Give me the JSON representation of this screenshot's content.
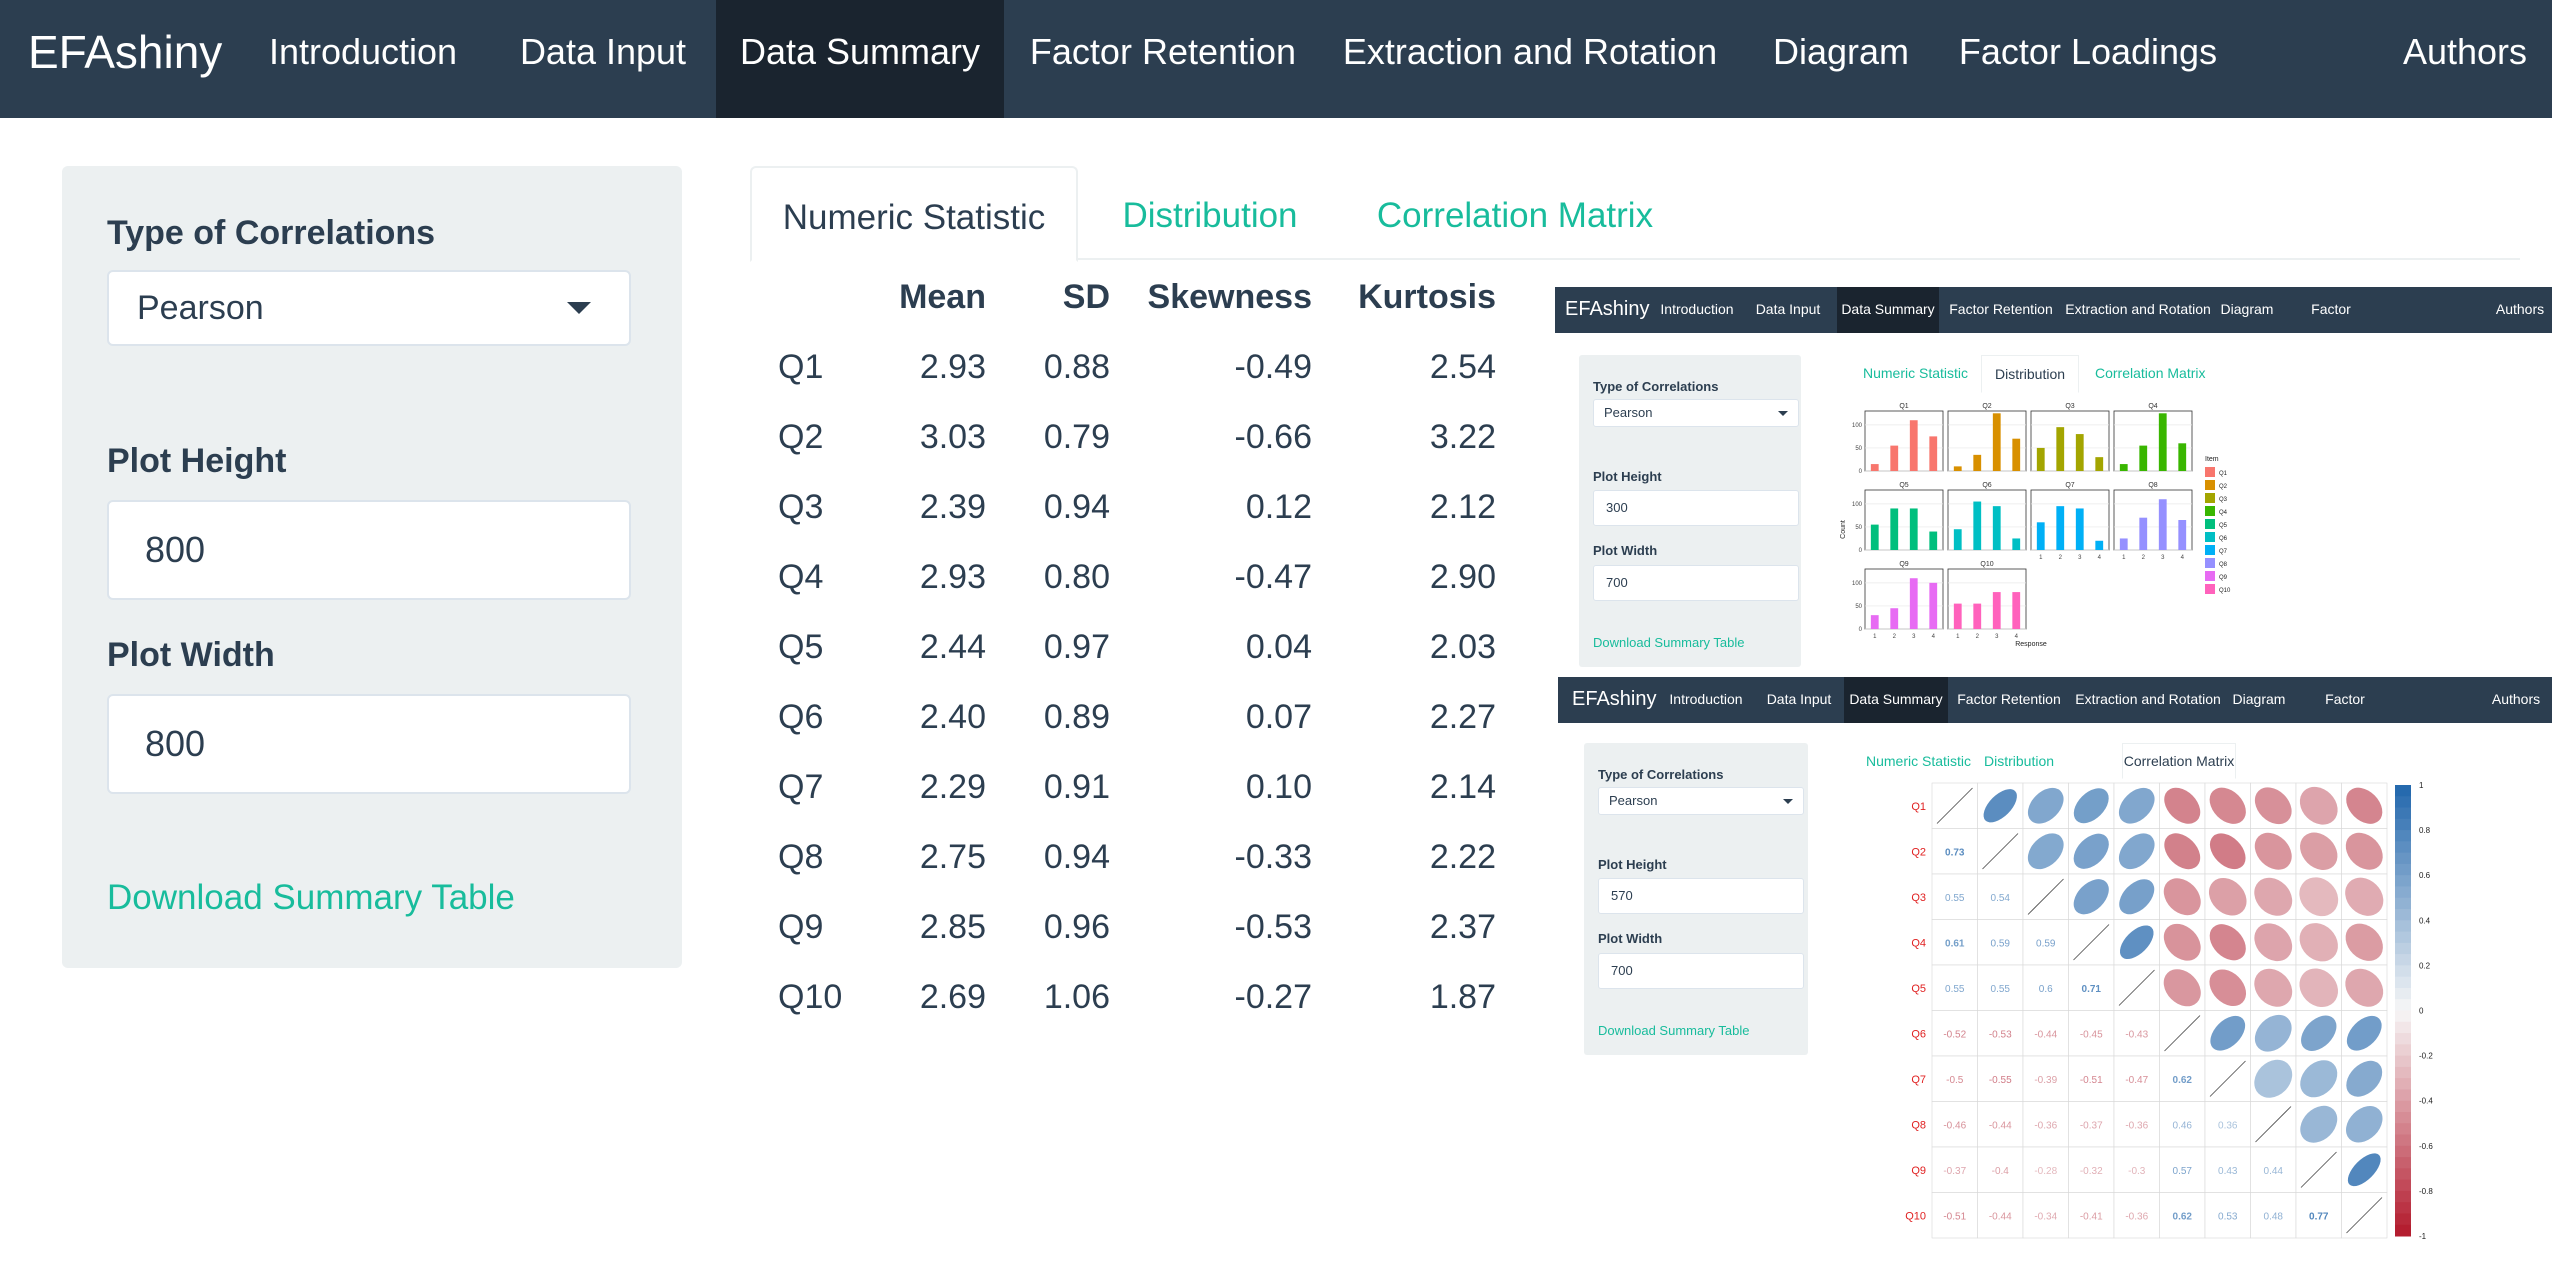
{
  "navbar": {
    "brand": "EFAshiny",
    "items": [
      "Introduction",
      "Data Input",
      "Data Summary",
      "Factor Retention",
      "Extraction and Rotation",
      "Diagram",
      "Factor Loadings"
    ],
    "authors": "Authors",
    "active": "Data Summary"
  },
  "sidebar": {
    "corr_label": "Type of Correlations",
    "corr_value": "Pearson",
    "height_label": "Plot Height",
    "height_value": "800",
    "width_label": "Plot Width",
    "width_value": "800",
    "download": "Download Summary Table"
  },
  "tabs": [
    "Numeric Statistic",
    "Distribution",
    "Correlation Matrix"
  ],
  "stats": {
    "headers": [
      "Mean",
      "SD",
      "Skewness",
      "Kurtosis"
    ],
    "rows": [
      {
        "item": "Q1",
        "mean": "2.93",
        "sd": "0.88",
        "skew": "-0.49",
        "kurt": "2.54"
      },
      {
        "item": "Q2",
        "mean": "3.03",
        "sd": "0.79",
        "skew": "-0.66",
        "kurt": "3.22"
      },
      {
        "item": "Q3",
        "mean": "2.39",
        "sd": "0.94",
        "skew": "0.12",
        "kurt": "2.12"
      },
      {
        "item": "Q4",
        "mean": "2.93",
        "sd": "0.80",
        "skew": "-0.47",
        "kurt": "2.90"
      },
      {
        "item": "Q5",
        "mean": "2.44",
        "sd": "0.97",
        "skew": "0.04",
        "kurt": "2.03"
      },
      {
        "item": "Q6",
        "mean": "2.40",
        "sd": "0.89",
        "skew": "0.07",
        "kurt": "2.27"
      },
      {
        "item": "Q7",
        "mean": "2.29",
        "sd": "0.91",
        "skew": "0.10",
        "kurt": "2.14"
      },
      {
        "item": "Q8",
        "mean": "2.75",
        "sd": "0.94",
        "skew": "-0.33",
        "kurt": "2.22"
      },
      {
        "item": "Q9",
        "mean": "2.85",
        "sd": "0.96",
        "skew": "-0.53",
        "kurt": "2.37"
      },
      {
        "item": "Q10",
        "mean": "2.69",
        "sd": "1.06",
        "skew": "-0.27",
        "kurt": "1.87"
      }
    ]
  },
  "mini_distribution": {
    "sidebar": {
      "corr_label": "Type of Correlations",
      "corr_value": "Pearson",
      "height_label": "Plot Height",
      "height_value": "300",
      "width_label": "Plot Width",
      "width_value": "700",
      "download": "Download Summary Table"
    },
    "active_tab": "Distribution"
  },
  "mini_correlation": {
    "sidebar": {
      "corr_label": "Type of Correlations",
      "corr_value": "Pearson",
      "height_label": "Plot Height",
      "height_value": "570",
      "width_label": "Plot Width",
      "width_value": "700",
      "download": "Download Summary Table"
    },
    "active_tab": "Correlation Matrix"
  },
  "colors": {
    "navbar": "#2c3e50",
    "navbar_active": "#1a242f",
    "accent": "#18bc9c",
    "sidebar": "#ecf0f1"
  },
  "chart_data": [
    {
      "type": "bar",
      "facets": [
        "Q1",
        "Q2",
        "Q3",
        "Q4",
        "Q5",
        "Q6",
        "Q7",
        "Q8",
        "Q9",
        "Q10"
      ],
      "categories": [
        "1",
        "2",
        "3",
        "4"
      ],
      "series": [
        {
          "name": "Q1",
          "color": "#f8766d",
          "values": [
            15,
            55,
            110,
            75
          ]
        },
        {
          "name": "Q2",
          "color": "#d89000",
          "values": [
            10,
            35,
            125,
            70
          ]
        },
        {
          "name": "Q3",
          "color": "#a3a500",
          "values": [
            50,
            95,
            80,
            30
          ]
        },
        {
          "name": "Q4",
          "color": "#39b600",
          "values": [
            15,
            55,
            125,
            60
          ]
        },
        {
          "name": "Q5",
          "color": "#00bf7d",
          "values": [
            55,
            90,
            90,
            40
          ]
        },
        {
          "name": "Q6",
          "color": "#00bfc4",
          "values": [
            45,
            105,
            95,
            25
          ]
        },
        {
          "name": "Q7",
          "color": "#00b0f6",
          "values": [
            60,
            95,
            90,
            20
          ]
        },
        {
          "name": "Q8",
          "color": "#9590ff",
          "values": [
            25,
            70,
            110,
            65
          ]
        },
        {
          "name": "Q9",
          "color": "#e76bf3",
          "values": [
            30,
            45,
            110,
            100
          ]
        },
        {
          "name": "Q10",
          "color": "#ff62bc",
          "values": [
            55,
            55,
            80,
            80
          ]
        }
      ],
      "xlabel": "Response",
      "ylabel": "Count",
      "ylim": [
        0,
        130
      ],
      "yticks": [
        "0",
        "50",
        "100"
      ],
      "legend_title": "Item",
      "legend_position": "right"
    },
    {
      "type": "heatmap",
      "labels": [
        "Q1",
        "Q2",
        "Q3",
        "Q4",
        "Q5",
        "Q6",
        "Q7",
        "Q8",
        "Q9",
        "Q10"
      ],
      "lower": [
        [],
        [
          "0.73"
        ],
        [
          "0.55",
          "0.54"
        ],
        [
          "0.61",
          "0.59",
          "0.59"
        ],
        [
          "0.55",
          "0.55",
          "0.6",
          "0.71"
        ],
        [
          "-0.52",
          "-0.53",
          "-0.44",
          "-0.45",
          "-0.43"
        ],
        [
          "-0.5",
          "-0.55",
          "-0.39",
          "-0.51",
          "-0.47",
          "0.62"
        ],
        [
          "-0.46",
          "-0.44",
          "-0.36",
          "-0.37",
          "-0.36",
          "0.46",
          "0.36"
        ],
        [
          "-0.37",
          "-0.4",
          "-0.28",
          "-0.32",
          "-0.3",
          "0.57",
          "0.43",
          "0.44"
        ],
        [
          "-0.51",
          "-0.44",
          "-0.34",
          "-0.41",
          "-0.36",
          "0.62",
          "0.53",
          "0.48",
          "0.77"
        ]
      ],
      "colorbar_ticks": [
        "1",
        "0.8",
        "0.6",
        "0.4",
        "0.2",
        "0",
        "-0.2",
        "-0.4",
        "-0.6",
        "-0.8",
        "-1"
      ],
      "colorbar_range": [
        -1,
        1
      ]
    }
  ]
}
